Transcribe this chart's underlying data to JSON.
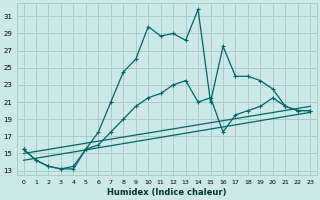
{
  "xlabel": "Humidex (Indice chaleur)",
  "bg_color": "#cce8e8",
  "grid_color": "#aacccc",
  "line_color": "#006666",
  "xlim": [
    -0.5,
    23.5
  ],
  "ylim": [
    12.5,
    32.5
  ],
  "yticks": [
    13,
    15,
    17,
    19,
    21,
    23,
    25,
    27,
    29,
    31
  ],
  "xticks": [
    0,
    1,
    2,
    3,
    4,
    5,
    6,
    7,
    8,
    9,
    10,
    11,
    12,
    13,
    14,
    15,
    16,
    17,
    18,
    19,
    20,
    21,
    22,
    23
  ],
  "series1_x": [
    0,
    1,
    2,
    3,
    4,
    5,
    6,
    7,
    8,
    9,
    10,
    11,
    12,
    13,
    14,
    15,
    16,
    17,
    18,
    19,
    20,
    21,
    22,
    23
  ],
  "series1_y": [
    15.5,
    14.2,
    13.5,
    13.2,
    13.2,
    15.5,
    17.5,
    21.0,
    24.5,
    26.0,
    29.8,
    28.7,
    29.0,
    28.2,
    31.8,
    21.0,
    27.5,
    24.0,
    24.0,
    23.5,
    22.5,
    20.5,
    20.0,
    20.0
  ],
  "series2_x": [
    0,
    1,
    2,
    3,
    4,
    5,
    6,
    7,
    8,
    9,
    10,
    11,
    12,
    13,
    14,
    15,
    16,
    17,
    18,
    19,
    20,
    21,
    22,
    23
  ],
  "series2_y": [
    15.5,
    14.2,
    13.5,
    13.2,
    13.5,
    15.5,
    16.0,
    17.5,
    19.0,
    20.5,
    21.5,
    22.0,
    23.0,
    23.5,
    21.0,
    21.5,
    17.5,
    19.5,
    20.0,
    20.5,
    21.5,
    20.5,
    20.0,
    20.0
  ],
  "series3_x": [
    0,
    23
  ],
  "series3_y": [
    15.0,
    20.5
  ],
  "series4_x": [
    0,
    23
  ],
  "series4_y": [
    14.2,
    19.8
  ]
}
